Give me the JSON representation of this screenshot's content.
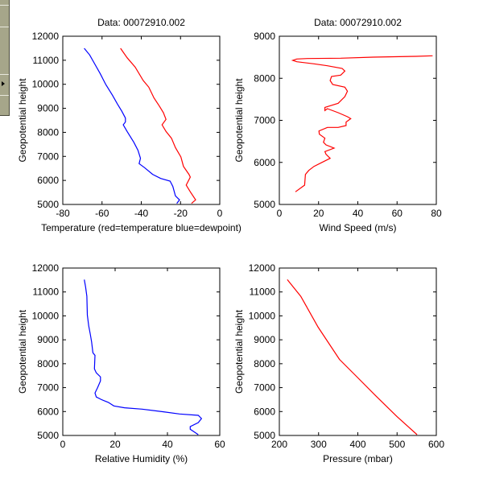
{
  "figure": {
    "background": "#ffffff",
    "line_color_red": "#ff0000",
    "line_color_blue": "#0000ff"
  },
  "chart_data": [
    {
      "type": "line",
      "title": "Data: 00072910.002",
      "xlabel": "Temperature (red=temperature blue=dewpoint)",
      "ylabel": "Geopotential height",
      "xlim": [
        -80,
        0
      ],
      "ylim": [
        5000,
        12000
      ],
      "xticks": [
        "-80",
        "-60",
        "-40",
        "-20",
        "0"
      ],
      "yticks": [
        "5000",
        "6000",
        "7000",
        "8000",
        "9000",
        "10000",
        "11000",
        "12000"
      ],
      "series": [
        {
          "name": "temperature",
          "color": "#ff0000",
          "x": [
            -50.6,
            -47.2,
            -43.1,
            -39.0,
            -36.2,
            -33.5,
            -30.8,
            -28.7,
            -27.4,
            -29.4,
            -27.4,
            -24.6,
            -22.6,
            -19.8,
            -18.5,
            -15.7,
            -15.0,
            -17.1,
            -15.0,
            -12.3,
            -14.4
          ],
          "y": [
            11498,
            11107,
            10716,
            10158,
            9879,
            9432,
            9097,
            8818,
            8539,
            8316,
            8037,
            7758,
            7367,
            6976,
            6585,
            6251,
            6139,
            5804,
            5525,
            5190,
            5045
          ]
        },
        {
          "name": "dewpoint",
          "color": "#0000ff",
          "x": [
            -69.1,
            -66.3,
            -63.6,
            -60.9,
            -58.1,
            -54.7,
            -52.0,
            -49.9,
            -48.1,
            -48.1,
            -49.2,
            -47.2,
            -43.8,
            -41.7,
            -40.4,
            -41.1,
            -38.3,
            -34.2,
            -30.1,
            -25.3,
            -23.9,
            -22.6,
            -20.5,
            -21.9
          ],
          "y": [
            11498,
            11219,
            10828,
            10437,
            9990,
            9544,
            9153,
            8874,
            8595,
            8428,
            8316,
            8037,
            7590,
            7255,
            6920,
            6697,
            6530,
            6251,
            6083,
            5972,
            5749,
            5357,
            5190,
            5045
          ]
        }
      ]
    },
    {
      "type": "line",
      "title": "Data: 00072910.002",
      "xlabel": "Wind Speed (m/s)",
      "ylabel": "Geopotential height",
      "xlim": [
        0,
        80
      ],
      "ylim": [
        5000,
        9000
      ],
      "xticks": [
        "0",
        "20",
        "40",
        "60",
        "80"
      ],
      "yticks": [
        "5000",
        "6000",
        "7000",
        "8000",
        "9000"
      ],
      "series": [
        {
          "name": "wind speed",
          "color": "#ff0000",
          "x": [
            8.2,
            12.9,
            13.3,
            15.0,
            17.7,
            21.8,
            25.9,
            23.8,
            23.2,
            27.9,
            23.8,
            22.5,
            23.2,
            20.4,
            20.2,
            24.5,
            30.0,
            34.0,
            34.0,
            36.4,
            34.7,
            30.0,
            24.5,
            23.2,
            23.2,
            30.0,
            33.4,
            34.7,
            33.4,
            27.2,
            25.9,
            26.6,
            31.3,
            33.4,
            32.0,
            24.5,
            17.7,
            8.9,
            6.8,
            8.9,
            14.3,
            31.3,
            47.7,
            69.5,
            78.1
          ],
          "y": [
            5300,
            5459,
            5714,
            5810,
            5906,
            6001,
            6097,
            6193,
            6257,
            6340,
            6416,
            6480,
            6576,
            6671,
            6748,
            6831,
            6831,
            6875,
            6958,
            7041,
            7086,
            7182,
            7277,
            7233,
            7309,
            7405,
            7565,
            7692,
            7788,
            7852,
            7947,
            8043,
            8075,
            8171,
            8234,
            8298,
            8343,
            8394,
            8426,
            8458,
            8470,
            8477,
            8502,
            8521,
            8534
          ]
        }
      ]
    },
    {
      "type": "line",
      "title": "",
      "xlabel": "Relative Humidity (%)",
      "ylabel": "Geopotential height",
      "xlim": [
        0,
        60
      ],
      "ylim": [
        5000,
        12000
      ],
      "xticks": [
        "0",
        "20",
        "40",
        "60"
      ],
      "yticks": [
        "5000",
        "6000",
        "7000",
        "8000",
        "9000",
        "10000",
        "11000",
        "12000"
      ],
      "series": [
        {
          "name": "relative humidity",
          "color": "#0000ff",
          "x": [
            8.2,
            8.7,
            9.2,
            9.4,
            9.9,
            10.5,
            11.0,
            11.5,
            12.3,
            12.1,
            12.8,
            14.4,
            14.4,
            13.3,
            12.3,
            12.8,
            14.9,
            17.4,
            19.5,
            23.6,
            30.3,
            38.5,
            44.6,
            51.8,
            53.0,
            51.8,
            48.7,
            48.7,
            50.3,
            51.8
          ],
          "y": [
            11517,
            11213,
            10820,
            10034,
            9584,
            9247,
            8910,
            8461,
            8348,
            7787,
            7618,
            7449,
            7281,
            7000,
            6775,
            6607,
            6494,
            6382,
            6236,
            6157,
            6101,
            5989,
            5899,
            5843,
            5708,
            5539,
            5371,
            5258,
            5146,
            5034
          ]
        }
      ]
    },
    {
      "type": "line",
      "title": "",
      "xlabel": "Pressure (mbar)",
      "ylabel": "Geopotential height",
      "xlim": [
        200,
        600
      ],
      "ylim": [
        5000,
        12000
      ],
      "xticks": [
        "200",
        "300",
        "400",
        "500",
        "600"
      ],
      "yticks": [
        "5000",
        "6000",
        "7000",
        "8000",
        "9000",
        "10000",
        "11000",
        "12000"
      ],
      "series": [
        {
          "name": "pressure",
          "color": "#ff0000",
          "x": [
            220.4,
            254.5,
            298.8,
            353.3,
            394.2,
            445.3,
            499.8,
            550.9
          ],
          "y": [
            11517,
            10820,
            9528,
            8180,
            7506,
            6663,
            5787,
            5034
          ]
        }
      ]
    }
  ]
}
